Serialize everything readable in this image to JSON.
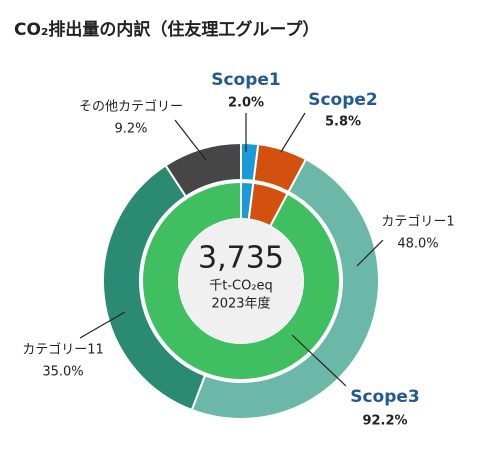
{
  "chart_data": {
    "type": "nested-donut",
    "title": "CO₂排出量の内訳（住友理工グループ）",
    "total": 3735,
    "total_label": "3,735",
    "unit": "千t-CO₂eq",
    "period": "2023年度",
    "categories": [
      "Scope1",
      "Scope2",
      "Scope3"
    ],
    "values": [
      2.0,
      5.8,
      92.2
    ],
    "value_labels": [
      "2.0%",
      "5.8%",
      "92.2%"
    ],
    "colors": [
      "#1a9bd7",
      "#d4500f",
      "#3fbf5f"
    ],
    "scope3_breakdown": {
      "categories": [
        "カテゴリー1",
        "カテゴリー11",
        "その他カテゴリー"
      ],
      "values": [
        48.0,
        35.0,
        9.2
      ],
      "value_labels": [
        "48.0%",
        "35.0%",
        "9.2%"
      ],
      "colors": [
        "#6bb8a8",
        "#2a8a72",
        "#464646"
      ]
    }
  }
}
